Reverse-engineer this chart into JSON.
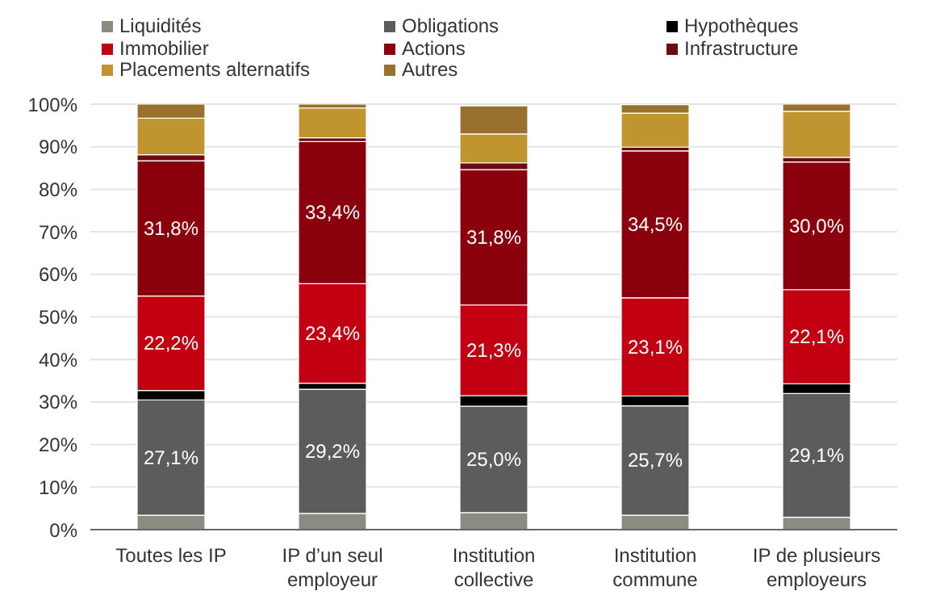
{
  "chart_data": {
    "type": "bar",
    "stacked": true,
    "categories": [
      "Toutes les IP",
      "IP d’un seul employeur",
      "Institution collective",
      "Institution commune",
      "IP de plusieurs employeurs"
    ],
    "series": [
      {
        "name": "Liquidités",
        "color": "#8c8b82",
        "values": [
          3.4,
          3.8,
          4.0,
          3.4,
          2.9
        ]
      },
      {
        "name": "Obligations",
        "color": "#5b5c5b",
        "values": [
          27.1,
          29.2,
          25.0,
          25.7,
          29.1
        ],
        "value_labels": [
          "27,1%",
          "29,2%",
          "25,0%",
          "25,7%",
          "29,1%"
        ]
      },
      {
        "name": "Hypothèques",
        "color": "#000000",
        "values": [
          2.2,
          1.4,
          2.5,
          2.3,
          2.3
        ]
      },
      {
        "name": "Immobilier",
        "color": "#c20012",
        "values": [
          22.2,
          23.4,
          21.3,
          23.1,
          22.1
        ],
        "value_labels": [
          "22,2%",
          "23,4%",
          "21,3%",
          "23,1%",
          "22,1%"
        ]
      },
      {
        "name": "Actions",
        "color": "#8b000d",
        "values": [
          31.8,
          33.4,
          31.8,
          34.5,
          30.0
        ],
        "value_labels": [
          "31,8%",
          "33,4%",
          "31,8%",
          "34,5%",
          "30,0%"
        ]
      },
      {
        "name": "Infrastructure",
        "color": "#6a0c12",
        "values": [
          1.4,
          0.9,
          1.6,
          0.9,
          1.1
        ]
      },
      {
        "name": "Placements alternatifs",
        "color": "#c0952f",
        "values": [
          8.6,
          7.0,
          6.8,
          8.0,
          10.8
        ]
      },
      {
        "name": "Autres",
        "color": "#98712f",
        "values": [
          3.3,
          1.0,
          6.6,
          2.0,
          1.7
        ]
      }
    ],
    "ylim": [
      0,
      100
    ],
    "yticks": [
      {
        "value": 0,
        "label": "0%"
      },
      {
        "value": 10,
        "label": "10%"
      },
      {
        "value": 20,
        "label": "20%"
      },
      {
        "value": 30,
        "label": "30%"
      },
      {
        "value": 40,
        "label": "40%"
      },
      {
        "value": 50,
        "label": "50%"
      },
      {
        "value": 60,
        "label": "60%"
      },
      {
        "value": 70,
        "label": "70%"
      },
      {
        "value": 80,
        "label": "80%"
      },
      {
        "value": 90,
        "label": "90%"
      },
      {
        "value": 100,
        "label": "100%"
      }
    ],
    "grid": "y",
    "legend": "top"
  }
}
